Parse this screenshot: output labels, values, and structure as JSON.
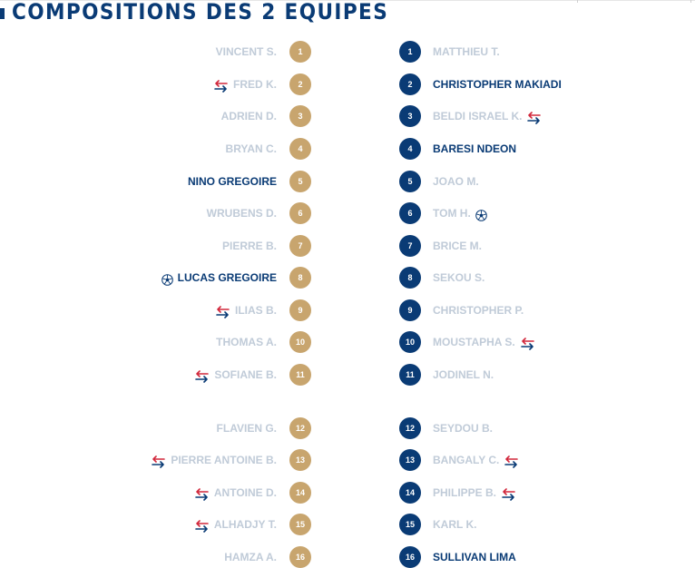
{
  "section": {
    "title": "COMPOSITIONS DES 2 EQUIPES"
  },
  "colors": {
    "home_badge": "#c8a56e",
    "away_badge": "#0a3b75",
    "muted_text": "#c0cbd8",
    "highlight_text": "#0a3b75",
    "sub_arrow_out": "#d2283c",
    "sub_arrow_in": "#0a3b75"
  },
  "icons": {
    "substitution": "substitution-arrows-icon",
    "goal": "soccer-ball-icon"
  },
  "home": {
    "players": [
      {
        "number": "1",
        "name": "VINCENT S.",
        "highlight": false,
        "icon": ""
      },
      {
        "number": "2",
        "name": "FRED K.",
        "highlight": false,
        "icon": "sub"
      },
      {
        "number": "3",
        "name": "ADRIEN D.",
        "highlight": false,
        "icon": ""
      },
      {
        "number": "4",
        "name": "BRYAN C.",
        "highlight": false,
        "icon": ""
      },
      {
        "number": "5",
        "name": "NINO GREGOIRE",
        "highlight": true,
        "icon": ""
      },
      {
        "number": "6",
        "name": "WRUBENS D.",
        "highlight": false,
        "icon": ""
      },
      {
        "number": "7",
        "name": "PIERRE B.",
        "highlight": false,
        "icon": ""
      },
      {
        "number": "8",
        "name": "LUCAS GREGOIRE",
        "highlight": true,
        "icon": "ball"
      },
      {
        "number": "9",
        "name": "ILIAS B.",
        "highlight": false,
        "icon": "sub"
      },
      {
        "number": "10",
        "name": "THOMAS A.",
        "highlight": false,
        "icon": ""
      },
      {
        "number": "11",
        "name": "SOFIANE B.",
        "highlight": false,
        "icon": "sub"
      },
      {
        "number": "12",
        "name": "FLAVIEN G.",
        "highlight": false,
        "icon": ""
      },
      {
        "number": "13",
        "name": "PIERRE ANTOINE B.",
        "highlight": false,
        "icon": "sub"
      },
      {
        "number": "14",
        "name": "ANTOINE D.",
        "highlight": false,
        "icon": "sub"
      },
      {
        "number": "15",
        "name": "ALHADJY T.",
        "highlight": false,
        "icon": "sub"
      },
      {
        "number": "16",
        "name": "HAMZA A.",
        "highlight": false,
        "icon": ""
      }
    ]
  },
  "away": {
    "players": [
      {
        "number": "1",
        "name": "MATTHIEU T.",
        "highlight": false,
        "icon": ""
      },
      {
        "number": "2",
        "name": "CHRISTOPHER MAKIADI",
        "highlight": true,
        "icon": ""
      },
      {
        "number": "3",
        "name": "BELDI ISRAEL K.",
        "highlight": false,
        "icon": "sub"
      },
      {
        "number": "4",
        "name": "BARESI NDEON",
        "highlight": true,
        "icon": ""
      },
      {
        "number": "5",
        "name": "JOAO M.",
        "highlight": false,
        "icon": ""
      },
      {
        "number": "6",
        "name": "TOM H.",
        "highlight": false,
        "icon": "ball"
      },
      {
        "number": "7",
        "name": "BRICE M.",
        "highlight": false,
        "icon": ""
      },
      {
        "number": "8",
        "name": "SEKOU S.",
        "highlight": false,
        "icon": ""
      },
      {
        "number": "9",
        "name": "CHRISTOPHER P.",
        "highlight": false,
        "icon": ""
      },
      {
        "number": "10",
        "name": "MOUSTAPHA S.",
        "highlight": false,
        "icon": "sub"
      },
      {
        "number": "11",
        "name": "JODINEL N.",
        "highlight": false,
        "icon": ""
      },
      {
        "number": "12",
        "name": "SEYDOU B.",
        "highlight": false,
        "icon": ""
      },
      {
        "number": "13",
        "name": "BANGALY C.",
        "highlight": false,
        "icon": "sub"
      },
      {
        "number": "14",
        "name": "PHILIPPE B.",
        "highlight": false,
        "icon": "sub"
      },
      {
        "number": "15",
        "name": "KARL K.",
        "highlight": false,
        "icon": ""
      },
      {
        "number": "16",
        "name": "SULLIVAN LIMA",
        "highlight": true,
        "icon": ""
      }
    ]
  }
}
